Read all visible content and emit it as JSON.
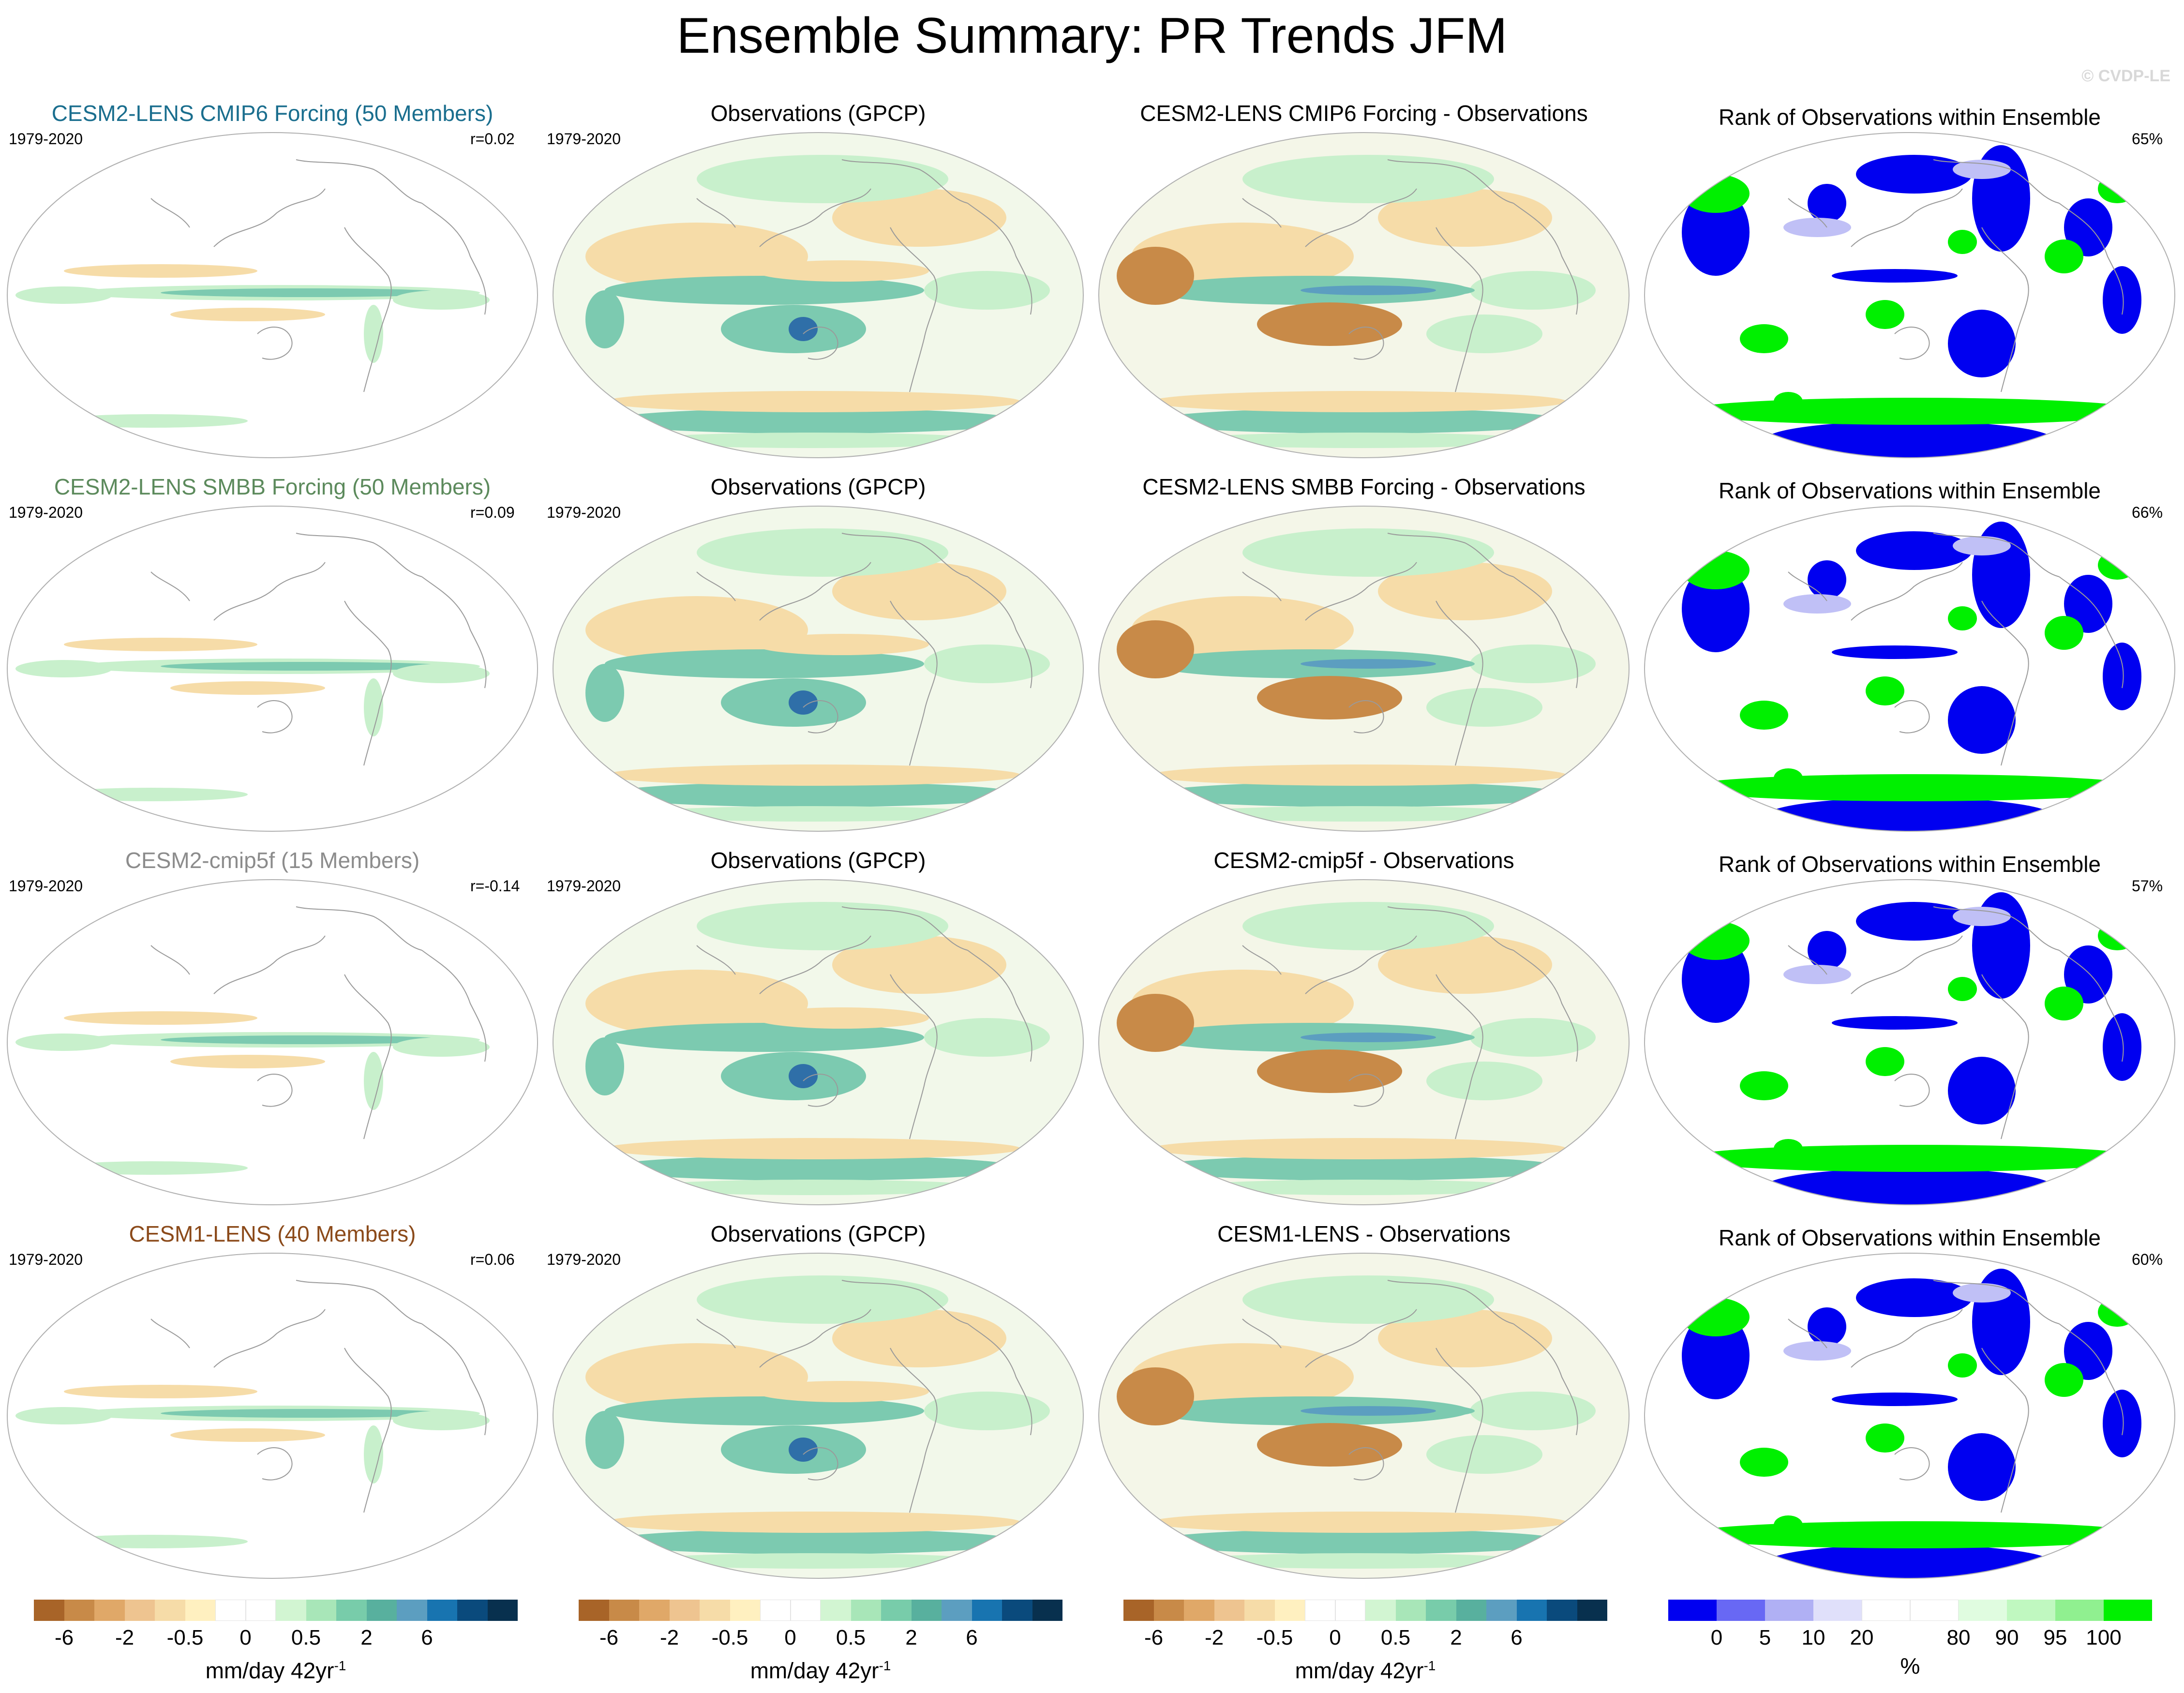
{
  "title": "Ensemble Summary: PR Trends JFM",
  "credit": "© CVDP-LE",
  "rows": [
    {
      "model_title": "CESM2-LENS CMIP6 Forcing (50 Members)",
      "model_color": "#1a6e8e",
      "period": "1979-2020",
      "corr": "r=0.02",
      "obs_title": "Observations (GPCP)",
      "obs_period": "1979-2020",
      "diff_title": "CESM2-LENS CMIP6 Forcing - Observations",
      "rank_title": "Rank of Observations within Ensemble",
      "rank_pct": "65%"
    },
    {
      "model_title": "CESM2-LENS SMBB Forcing (50 Members)",
      "model_color": "#5c8a5c",
      "period": "1979-2020",
      "corr": "r=0.09",
      "obs_title": "Observations (GPCP)",
      "obs_period": "1979-2020",
      "diff_title": "CESM2-LENS SMBB Forcing - Observations",
      "rank_title": "Rank of Observations within Ensemble",
      "rank_pct": "66%"
    },
    {
      "model_title": "CESM2-cmip5f (15 Members)",
      "model_color": "#8c8c8c",
      "period": "1979-2020",
      "corr": "r=-0.14",
      "obs_title": "Observations (GPCP)",
      "obs_period": "1979-2020",
      "diff_title": "CESM2-cmip5f - Observations",
      "rank_title": "Rank of Observations within Ensemble",
      "rank_pct": "57%"
    },
    {
      "model_title": "CESM1-LENS (40 Members)",
      "model_color": "#8b4a1a",
      "period": "1979-2020",
      "corr": "r=0.06",
      "obs_title": "Observations (GPCP)",
      "obs_period": "1979-2020",
      "diff_title": "CESM1-LENS - Observations",
      "rank_title": "Rank of Observations within Ensemble",
      "rank_pct": "60%"
    }
  ],
  "colorbars": {
    "trend": {
      "colors": [
        "#a86428",
        "#c88a48",
        "#e0a868",
        "#eec490",
        "#f6dca8",
        "#fff0c0",
        "#ffffff",
        "#ffffff",
        "#d2f5d2",
        "#a8e6b8",
        "#78ccaa",
        "#58b09e",
        "#5c9ec0",
        "#1874b0",
        "#0a4a7c",
        "#08304e"
      ],
      "tick_labels": [
        "-6",
        "-2",
        "-0.5",
        "0",
        "0.5",
        "2",
        "6"
      ],
      "title": "mm/day 42yr",
      "title_sup": "-1"
    },
    "rank": {
      "colors": [
        "#0000f0",
        "#6868f4",
        "#b0b0f4",
        "#e0e0fa",
        "#ffffff",
        "#ffffff",
        "#e0fce0",
        "#c0f8c0",
        "#90f090",
        "#00f000"
      ],
      "tick_labels": [
        "0",
        "5",
        "10",
        "20",
        "80",
        "90",
        "95",
        "100"
      ],
      "title": "%"
    }
  },
  "map_palette": {
    "dry_strong": "#c88a48",
    "dry": "#f6dca8",
    "wet": "#c8f0cc",
    "wet_mid": "#7ccab0",
    "wet_strong": "#2f6fa8",
    "rank_low": "#0000f0",
    "rank_low_light": "#c0c0f6",
    "rank_high": "#00f000",
    "coast": "#9a9a9a"
  }
}
